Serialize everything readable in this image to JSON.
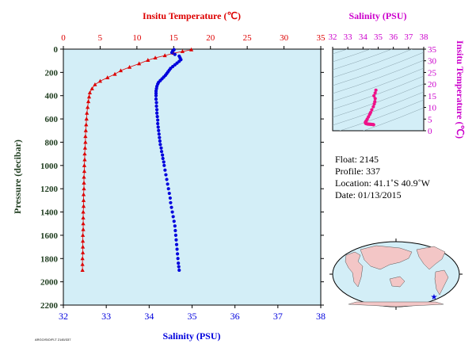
{
  "colors": {
    "temperature": "#dd0000",
    "salinity": "#0000dd",
    "ts_axis": "#cc00cc",
    "ts_points": "#ee1188",
    "pressure_axis": "#1f3d1f",
    "plot_bg": "#d3eef7"
  },
  "info": {
    "float": "Float:  2145",
    "profile": "Profile:  337",
    "location": "Location:  41.1˚S  40.9˚W",
    "date": "Date:  01/13/2015"
  },
  "footer_code": "ARGO/SIO/FLT 2145/337",
  "map": {
    "float_position": {
      "lat": -41.1,
      "lon": -40.9
    },
    "marker_icon": "star-icon"
  },
  "chart_data": [
    {
      "type": "line",
      "title": "",
      "ylabel": "Pressure (decibar)",
      "yticks": [
        0,
        200,
        400,
        600,
        800,
        1000,
        1200,
        1400,
        1600,
        1800,
        2000,
        2200
      ],
      "ylim": [
        2200,
        0
      ],
      "axes": {
        "temperature": {
          "label": "Insitu Temperature (℃)",
          "ticks": [
            0,
            5,
            10,
            15,
            20,
            25,
            30,
            35
          ],
          "lim": [
            0,
            35
          ]
        },
        "salinity": {
          "label": "Salinity (PSU)",
          "ticks": [
            32,
            33,
            34,
            35,
            36,
            37,
            38
          ],
          "lim": [
            32,
            38
          ]
        }
      },
      "grid": false,
      "series": [
        {
          "axis": "temperature",
          "marker": "triangle",
          "points": [
            [
              17.4,
              5
            ],
            [
              16.2,
              20
            ],
            [
              15.0,
              35
            ],
            [
              13.8,
              55
            ],
            [
              12.5,
              75
            ],
            [
              11.5,
              95
            ],
            [
              10.3,
              125
            ],
            [
              9.0,
              155
            ],
            [
              7.8,
              185
            ],
            [
              7.0,
              215
            ],
            [
              6.0,
              245
            ],
            [
              5.0,
              275
            ],
            [
              4.3,
              305
            ],
            [
              3.9,
              340
            ],
            [
              3.6,
              375
            ],
            [
              3.5,
              410
            ],
            [
              3.4,
              450
            ],
            [
              3.3,
              500
            ],
            [
              3.2,
              550
            ],
            [
              3.15,
              600
            ],
            [
              3.1,
              650
            ],
            [
              3.05,
              700
            ],
            [
              3.0,
              750
            ],
            [
              3.0,
              800
            ],
            [
              2.95,
              850
            ],
            [
              2.9,
              900
            ],
            [
              2.9,
              950
            ],
            [
              2.85,
              1000
            ],
            [
              2.85,
              1050
            ],
            [
              2.8,
              1100
            ],
            [
              2.8,
              1150
            ],
            [
              2.8,
              1200
            ],
            [
              2.75,
              1250
            ],
            [
              2.75,
              1300
            ],
            [
              2.75,
              1350
            ],
            [
              2.7,
              1400
            ],
            [
              2.7,
              1450
            ],
            [
              2.7,
              1500
            ],
            [
              2.7,
              1550
            ],
            [
              2.65,
              1600
            ],
            [
              2.65,
              1650
            ],
            [
              2.65,
              1700
            ],
            [
              2.65,
              1750
            ],
            [
              2.6,
              1800
            ],
            [
              2.6,
              1850
            ],
            [
              2.6,
              1900
            ]
          ]
        },
        {
          "axis": "salinity",
          "marker": "circle",
          "points": [
            [
              34.58,
              5
            ],
            [
              34.55,
              15
            ],
            [
              34.53,
              30
            ],
            [
              34.6,
              45
            ],
            [
              34.7,
              60
            ],
            [
              34.72,
              75
            ],
            [
              34.74,
              90
            ],
            [
              34.7,
              105
            ],
            [
              34.65,
              120
            ],
            [
              34.6,
              135
            ],
            [
              34.55,
              150
            ],
            [
              34.5,
              165
            ],
            [
              34.47,
              180
            ],
            [
              34.44,
              195
            ],
            [
              34.41,
              210
            ],
            [
              34.38,
              225
            ],
            [
              34.34,
              240
            ],
            [
              34.3,
              255
            ],
            [
              34.26,
              270
            ],
            [
              34.22,
              285
            ],
            [
              34.2,
              300
            ],
            [
              34.18,
              320
            ],
            [
              34.17,
              340
            ],
            [
              34.16,
              360
            ],
            [
              34.16,
              380
            ],
            [
              34.16,
              400
            ],
            [
              34.16,
              430
            ],
            [
              34.17,
              460
            ],
            [
              34.17,
              490
            ],
            [
              34.18,
              520
            ],
            [
              34.18,
              550
            ],
            [
              34.19,
              580
            ],
            [
              34.2,
              610
            ],
            [
              34.2,
              640
            ],
            [
              34.21,
              670
            ],
            [
              34.22,
              700
            ],
            [
              34.23,
              730
            ],
            [
              34.24,
              760
            ],
            [
              34.25,
              790
            ],
            [
              34.26,
              820
            ],
            [
              34.28,
              850
            ],
            [
              34.29,
              880
            ],
            [
              34.31,
              910
            ],
            [
              34.32,
              940
            ],
            [
              34.34,
              970
            ],
            [
              34.35,
              1000
            ],
            [
              34.37,
              1040
            ],
            [
              34.39,
              1080
            ],
            [
              34.41,
              1120
            ],
            [
              34.43,
              1160
            ],
            [
              34.45,
              1200
            ],
            [
              34.47,
              1240
            ],
            [
              34.49,
              1280
            ],
            [
              34.5,
              1320
            ],
            [
              34.52,
              1360
            ],
            [
              34.54,
              1400
            ],
            [
              34.56,
              1440
            ],
            [
              34.58,
              1480
            ],
            [
              34.6,
              1520
            ],
            [
              34.61,
              1560
            ],
            [
              34.62,
              1600
            ],
            [
              34.63,
              1640
            ],
            [
              34.64,
              1680
            ],
            [
              34.65,
              1720
            ],
            [
              34.66,
              1760
            ],
            [
              34.67,
              1800
            ],
            [
              34.68,
              1840
            ],
            [
              34.69,
              1870
            ],
            [
              34.7,
              1900
            ]
          ]
        }
      ]
    },
    {
      "type": "scatter",
      "title": "",
      "xlabel": "Salinity (PSU)",
      "ylabel": "Insitu Temperature (℃)",
      "xticks": [
        32,
        33,
        34,
        35,
        36,
        37,
        38
      ],
      "yticks": [
        0,
        5,
        10,
        15,
        20,
        25,
        30,
        35
      ],
      "xlim": [
        32,
        38
      ],
      "ylim": [
        0,
        35
      ],
      "grid": false,
      "points": [
        [
          34.85,
          17.4
        ],
        [
          34.8,
          16.2
        ],
        [
          34.72,
          15.0
        ],
        [
          34.8,
          13.8
        ],
        [
          34.78,
          12.5
        ],
        [
          34.74,
          11.5
        ],
        [
          34.68,
          10.3
        ],
        [
          34.58,
          9.0
        ],
        [
          34.5,
          7.8
        ],
        [
          34.44,
          7.0
        ],
        [
          34.36,
          6.0
        ],
        [
          34.28,
          5.0
        ],
        [
          34.22,
          4.3
        ],
        [
          34.18,
          3.9
        ],
        [
          34.16,
          3.6
        ],
        [
          34.16,
          3.4
        ],
        [
          34.18,
          3.2
        ],
        [
          34.2,
          3.1
        ],
        [
          34.24,
          3.0
        ],
        [
          34.3,
          2.9
        ],
        [
          34.36,
          2.85
        ],
        [
          34.44,
          2.8
        ],
        [
          34.52,
          2.75
        ],
        [
          34.6,
          2.7
        ],
        [
          34.66,
          2.65
        ],
        [
          34.7,
          2.6
        ]
      ]
    }
  ]
}
